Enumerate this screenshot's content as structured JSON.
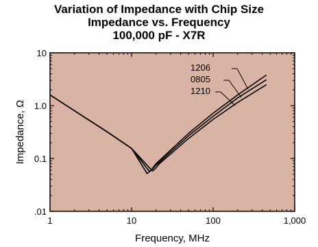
{
  "chart_data": {
    "type": "line",
    "title": "Variation of Impedance with Chip Size",
    "subtitle": "Impedance vs. Frequency",
    "subtitle2": "100,000 pF - X7R",
    "xlabel": "Frequency, MHz",
    "ylabel": "Impedance, Ω",
    "x_scale": "log",
    "y_scale": "log",
    "xlim": [
      1,
      1000
    ],
    "ylim": [
      0.01,
      10
    ],
    "x_ticks": [
      1,
      10,
      100,
      1000
    ],
    "x_tick_labels": [
      "1",
      "10",
      "100",
      "1,000"
    ],
    "y_ticks": [
      0.01,
      0.1,
      1,
      10
    ],
    "y_tick_labels": [
      ".01",
      "0.1",
      "1.0",
      "10"
    ],
    "grid": false,
    "plot_background": "#d9b3a3",
    "line_color": "#000000",
    "series": [
      {
        "name": "1206",
        "x": [
          1,
          2,
          5,
          10,
          15.5,
          17,
          20,
          50,
          100,
          200,
          450
        ],
        "y": [
          1.6,
          0.8,
          0.32,
          0.155,
          0.052,
          0.058,
          0.08,
          0.3,
          0.72,
          1.6,
          3.8
        ]
      },
      {
        "name": "0805",
        "x": [
          1,
          2,
          5,
          10,
          16.5,
          18,
          20,
          50,
          100,
          200,
          450
        ],
        "y": [
          1.6,
          0.8,
          0.32,
          0.155,
          0.057,
          0.063,
          0.075,
          0.27,
          0.63,
          1.4,
          3.1
        ]
      },
      {
        "name": "1210",
        "x": [
          1,
          2,
          5,
          10,
          18,
          19.5,
          22,
          50,
          100,
          200,
          450
        ],
        "y": [
          1.6,
          0.8,
          0.32,
          0.155,
          0.058,
          0.064,
          0.08,
          0.24,
          0.55,
          1.15,
          2.5
        ]
      }
    ]
  }
}
